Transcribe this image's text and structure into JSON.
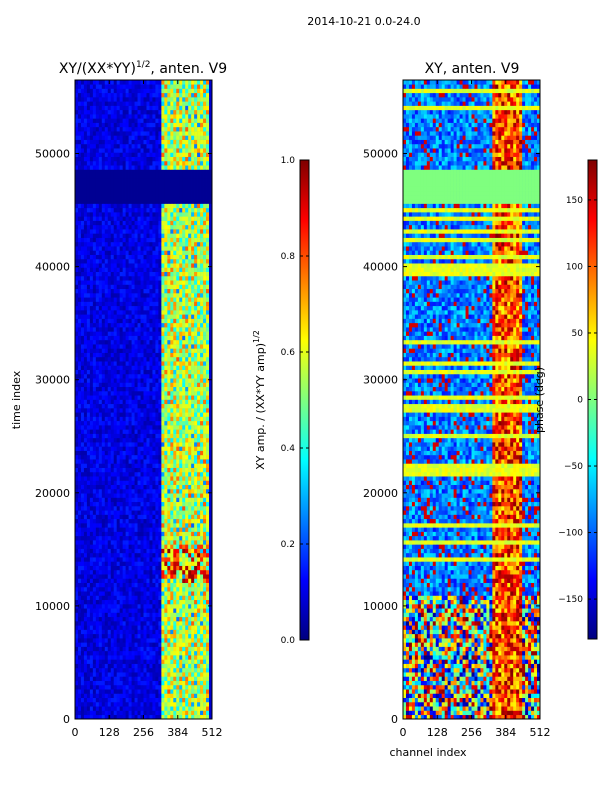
{
  "figure": {
    "suptitle": "2014-10-21 0.0-24.0"
  },
  "colors": {
    "jet": [
      "#00007f",
      "#0000ff",
      "#007fff",
      "#00ffff",
      "#7fff7f",
      "#ffff00",
      "#ff7f00",
      "#ff0000",
      "#7f0000"
    ],
    "frame": "#000000",
    "background": "#ffffff"
  },
  "chart_data": [
    {
      "type": "heatmap",
      "title_main": "XY/(XX*YY)",
      "title_sup": "1/2",
      "title_rest": ", anten. V9",
      "xlabel": "",
      "ylabel": "time index",
      "xlim": [
        0,
        512
      ],
      "ylim": [
        0,
        56500
      ],
      "xticks": [
        0,
        128,
        256,
        384,
        512
      ],
      "yticks": [
        0,
        10000,
        20000,
        30000,
        40000,
        50000
      ],
      "xtick_labels": [
        "0",
        "128",
        "256",
        "384",
        "512"
      ],
      "ytick_labels": [
        "0",
        "10000",
        "20000",
        "30000",
        "40000",
        "50000"
      ],
      "colorbar": {
        "label_main": "XY amp. / (XX*YY amp)",
        "label_sup": "1/2",
        "range": [
          0.0,
          1.0
        ],
        "ticks": [
          0.0,
          0.2,
          0.4,
          0.6,
          0.8,
          1.0
        ],
        "tick_labels": [
          "0.0",
          "0.2",
          "0.4",
          "0.6",
          "0.8",
          "1.0"
        ]
      },
      "features": [
        {
          "name": "low-amplitude background",
          "x_range": [
            0,
            320
          ],
          "y_range": [
            0,
            56500
          ],
          "value": 0.05
        },
        {
          "name": "active band",
          "x_range": [
            320,
            500
          ],
          "y_range": [
            0,
            56500
          ],
          "value_range": [
            0.2,
            0.8
          ]
        },
        {
          "name": "flagged gap",
          "x_range": [
            0,
            512
          ],
          "y_range": [
            45500,
            48500
          ],
          "value": 0.0
        },
        {
          "name": "high-value band",
          "x_range": [
            320,
            500
          ],
          "y_range": [
            12000,
            15500
          ],
          "value_range": [
            0.5,
            1.0
          ]
        }
      ]
    },
    {
      "type": "heatmap",
      "title": "XY, anten. V9",
      "xlabel": "channel index",
      "ylabel": "",
      "xlim": [
        0,
        512
      ],
      "ylim": [
        0,
        56500
      ],
      "xticks": [
        0,
        128,
        256,
        384,
        512
      ],
      "yticks": [
        0,
        10000,
        20000,
        30000,
        40000,
        50000
      ],
      "xtick_labels": [
        "0",
        "128",
        "256",
        "384",
        "512"
      ],
      "ytick_labels": [
        "0",
        "10000",
        "20000",
        "30000",
        "40000",
        "50000"
      ],
      "colorbar": {
        "label": "phase (deg)",
        "range": [
          -180,
          180
        ],
        "ticks": [
          -150,
          -100,
          -50,
          0,
          50,
          100,
          150
        ],
        "tick_labels": [
          "−150",
          "−100",
          "−50",
          "0",
          "50",
          "100",
          "150"
        ]
      },
      "features": [
        {
          "name": "phase noise background",
          "x_range": [
            0,
            330
          ],
          "y_range": [
            0,
            56500
          ]
        },
        {
          "name": "coherent phase band",
          "x_range": [
            330,
            450
          ],
          "y_range": [
            0,
            56500
          ]
        },
        {
          "name": "flagged constant phase",
          "x_range": [
            0,
            512
          ],
          "y_range": [
            45500,
            48500
          ],
          "value": 0
        }
      ]
    }
  ]
}
